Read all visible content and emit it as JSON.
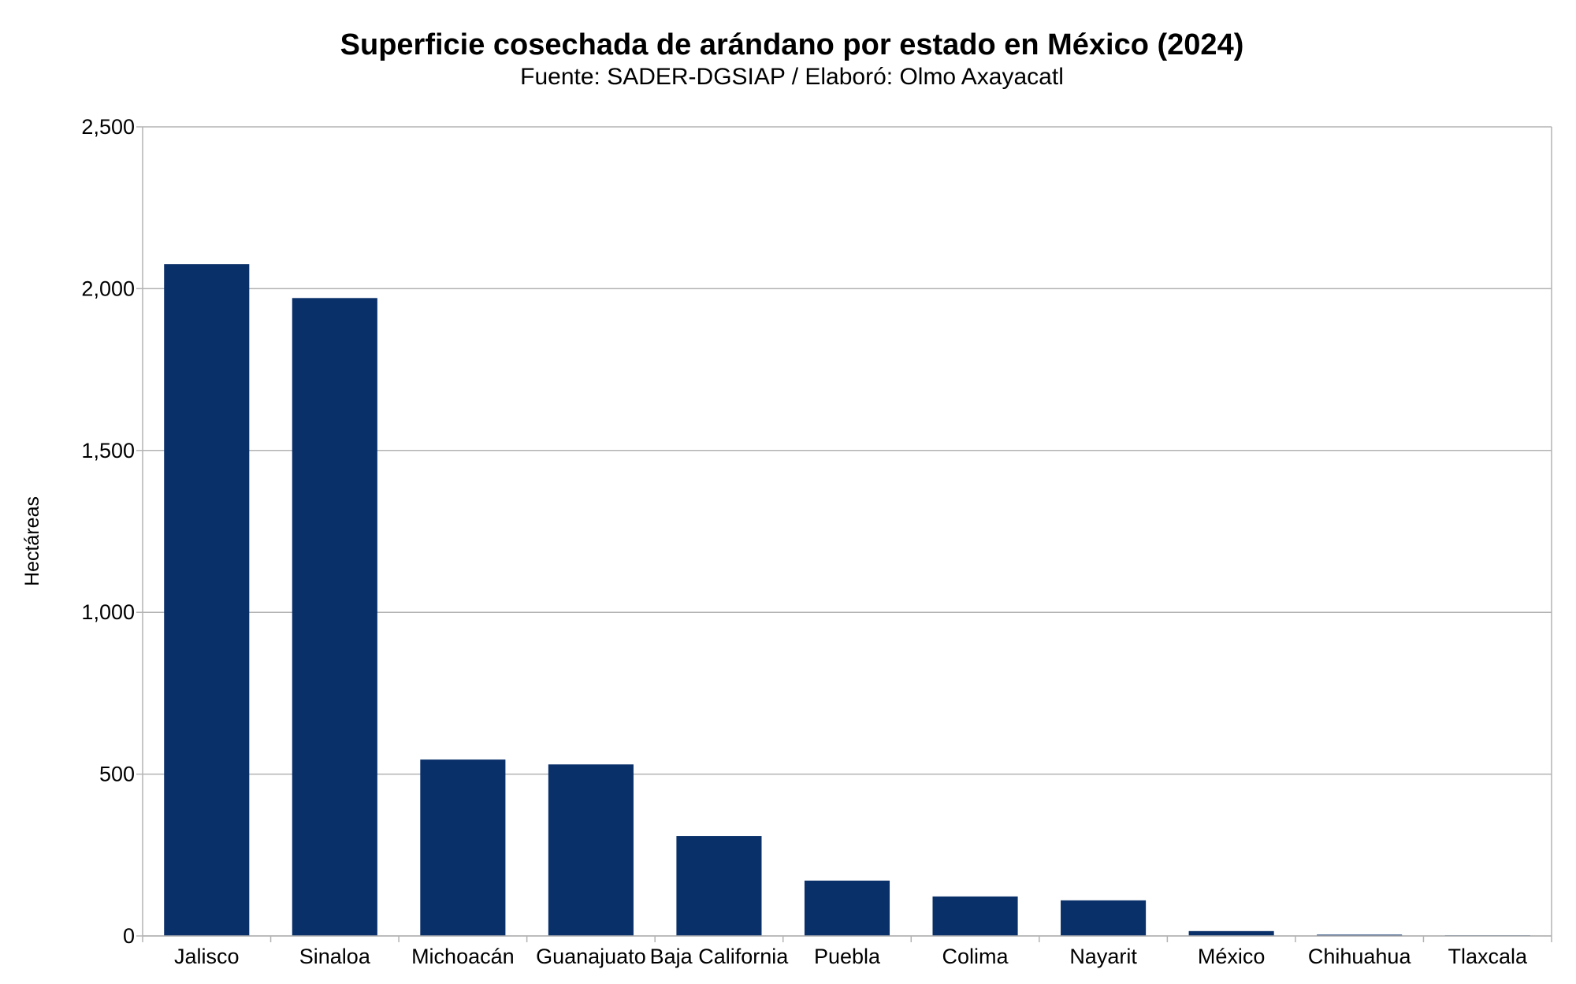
{
  "chart_data": {
    "type": "bar",
    "title": "Superficie cosechada de arándano por estado en México (2024)",
    "subtitle": "Fuente: SADER-DGSIAP / Elaboró: Olmo Axayacatl",
    "xlabel": "",
    "ylabel": "Hectáreas",
    "categories": [
      "Jalisco",
      "Sinaloa",
      "Michoacán",
      "Guanajuato",
      "Baja California",
      "Puebla",
      "Colima",
      "Nayarit",
      "México",
      "Chihuahua",
      "Tlaxcala"
    ],
    "values": [
      2076,
      1971,
      545,
      530,
      309,
      171,
      122,
      110,
      15,
      4,
      2
    ],
    "ylim": [
      0,
      2500
    ],
    "yticks": [
      0,
      500,
      1000,
      1500,
      2000,
      2500
    ],
    "ytick_labels": [
      "0",
      "500",
      "1,000",
      "1,500",
      "2,000",
      "2,500"
    ],
    "grid": true,
    "legend": "none",
    "bar_color": "#0a306a",
    "grid_color": "#b3b3b3"
  }
}
